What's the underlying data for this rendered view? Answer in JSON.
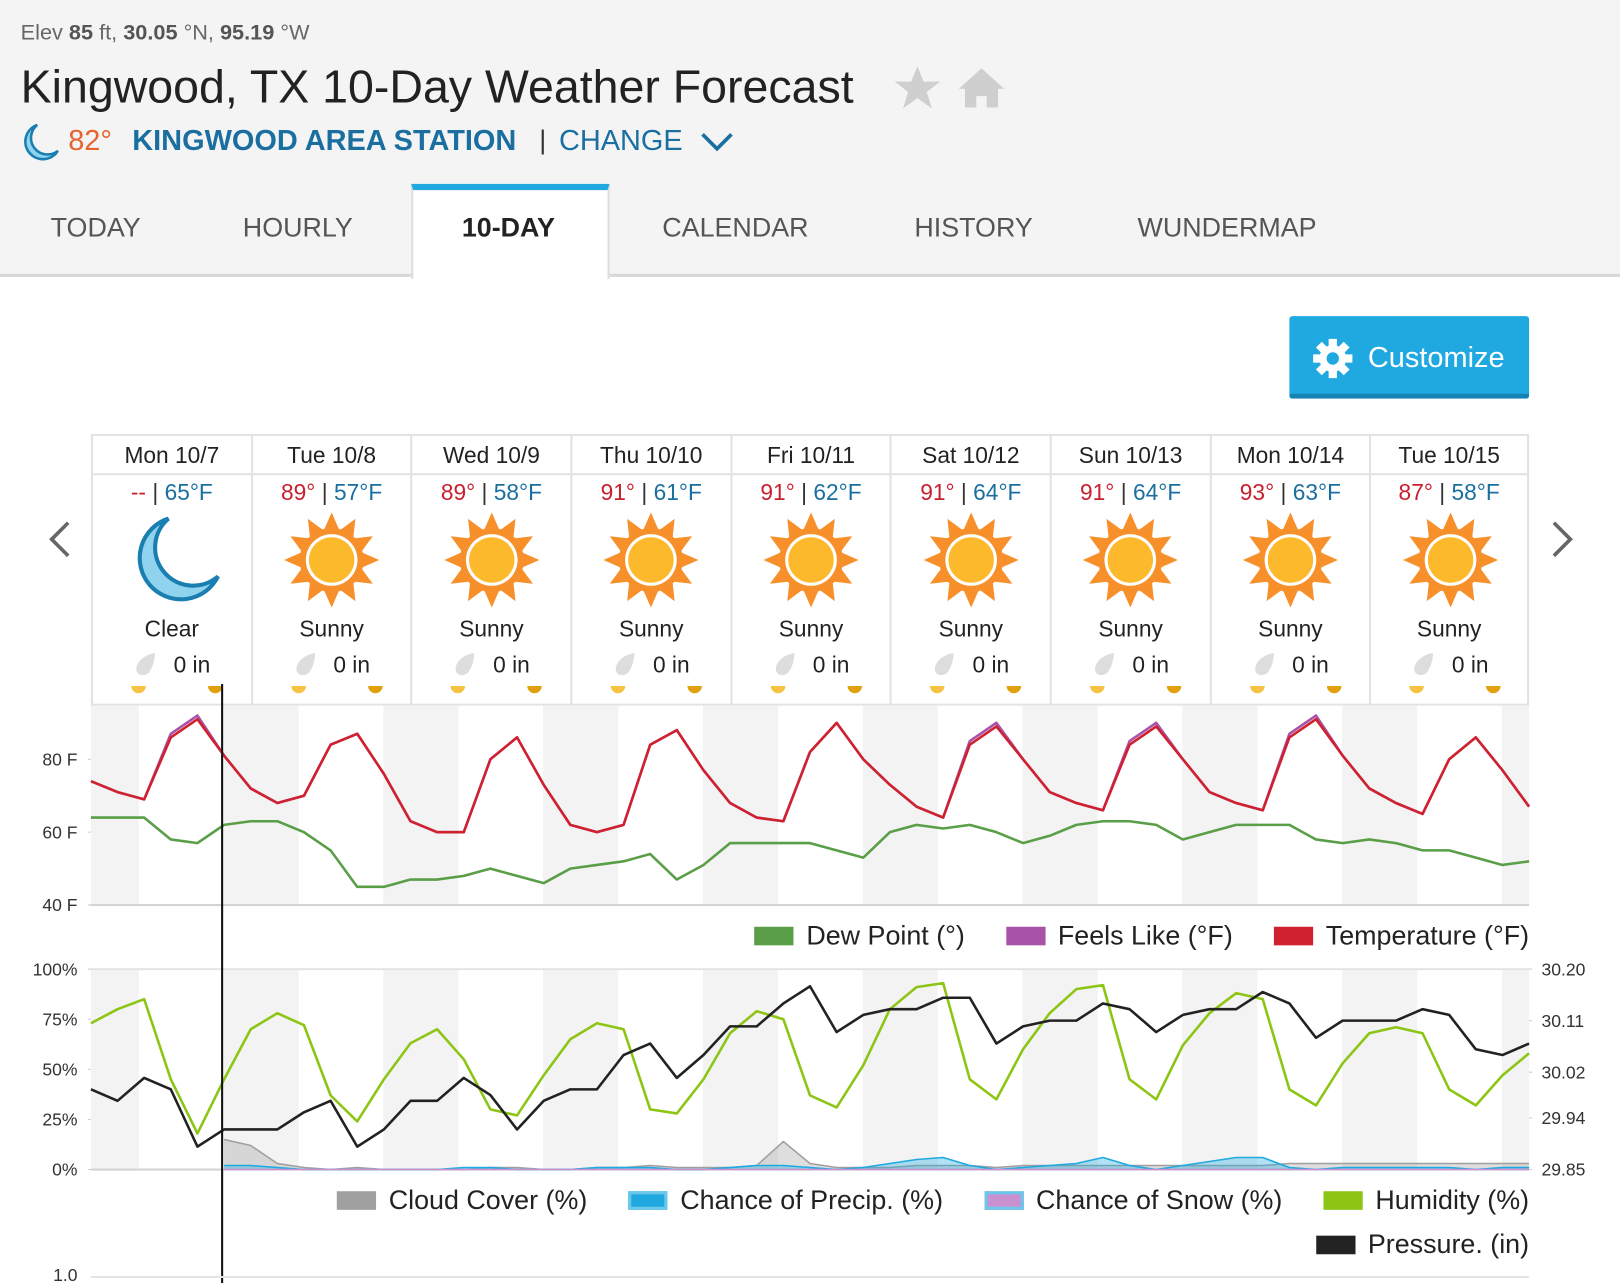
{
  "header": {
    "elev_label": "Elev",
    "elev": "85",
    "elev_unit": "ft,",
    "lat": "30.05",
    "lat_unit": "°N,",
    "lon": "95.19",
    "lon_unit": "°W",
    "title": "Kingwood, TX 10-Day Weather Forecast",
    "current_temp": "82°",
    "station": "KINGWOOD AREA STATION",
    "separator": "|",
    "change": "CHANGE"
  },
  "tabs": {
    "items": [
      "TODAY",
      "HOURLY",
      "10-DAY",
      "CALENDAR",
      "HISTORY",
      "WUNDERMAP"
    ],
    "active": 2
  },
  "customize": "Customize",
  "forecast": {
    "separator": "|",
    "days": [
      {
        "date": "Mon 10/7",
        "high": "--",
        "low": "65°F",
        "condition": "Clear",
        "icon": "moon",
        "precip": "0 in"
      },
      {
        "date": "Tue 10/8",
        "high": "89°",
        "low": "57°F",
        "condition": "Sunny",
        "icon": "sun",
        "precip": "0 in"
      },
      {
        "date": "Wed 10/9",
        "high": "89°",
        "low": "58°F",
        "condition": "Sunny",
        "icon": "sun",
        "precip": "0 in"
      },
      {
        "date": "Thu 10/10",
        "high": "91°",
        "low": "61°F",
        "condition": "Sunny",
        "icon": "sun",
        "precip": "0 in"
      },
      {
        "date": "Fri 10/11",
        "high": "91°",
        "low": "62°F",
        "condition": "Sunny",
        "icon": "sun",
        "precip": "0 in"
      },
      {
        "date": "Sat 10/12",
        "high": "91°",
        "low": "64°F",
        "condition": "Sunny",
        "icon": "sun",
        "precip": "0 in"
      },
      {
        "date": "Sun 10/13",
        "high": "91°",
        "low": "64°F",
        "condition": "Sunny",
        "icon": "sun",
        "precip": "0 in"
      },
      {
        "date": "Mon 10/14",
        "high": "93°",
        "low": "63°F",
        "condition": "Sunny",
        "icon": "sun",
        "precip": "0 in"
      },
      {
        "date": "Tue 10/15",
        "high": "87°",
        "low": "58°F",
        "condition": "Sunny",
        "icon": "sun",
        "precip": "0 in"
      }
    ]
  },
  "chart_data": [
    {
      "type": "line",
      "ylim": [
        40,
        95
      ],
      "yticks": [
        {
          "value": 40,
          "label": "40 F"
        },
        {
          "value": 60,
          "label": "60 F"
        },
        {
          "value": 80,
          "label": "80 F"
        }
      ],
      "grid": false,
      "series": [
        {
          "name": "Dew Point (°)",
          "color": "#5a9e48",
          "values": [
            64,
            64,
            64,
            58,
            57,
            62,
            63,
            63,
            60,
            55,
            45,
            45,
            47,
            47,
            48,
            50,
            48,
            46,
            50,
            51,
            52,
            54,
            47,
            51,
            57,
            57,
            57,
            57,
            55,
            53,
            60,
            62,
            61,
            62,
            60,
            57,
            59,
            62,
            63,
            63,
            62,
            58,
            60,
            62,
            62,
            62,
            58,
            57,
            58,
            57,
            55,
            55,
            53,
            51,
            52
          ]
        },
        {
          "name": "Feels Like (°F)",
          "color": "#a853a8",
          "values": [
            74,
            71,
            69,
            87,
            92,
            81,
            72,
            68,
            70,
            84,
            87,
            76,
            63,
            60,
            60,
            80,
            86,
            73,
            62,
            60,
            62,
            84,
            88,
            77,
            68,
            64,
            63,
            82,
            90,
            80,
            73,
            67,
            64,
            85,
            90,
            80,
            71,
            68,
            66,
            85,
            90,
            80,
            71,
            68,
            66,
            87,
            92,
            81,
            72,
            68,
            65,
            80,
            86,
            77,
            67
          ]
        },
        {
          "name": "Temperature (°F)",
          "color": "#d0212f",
          "values": [
            74,
            71,
            69,
            86,
            91,
            81,
            72,
            68,
            70,
            84,
            87,
            76,
            63,
            60,
            60,
            80,
            86,
            73,
            62,
            60,
            62,
            84,
            88,
            77,
            68,
            64,
            63,
            82,
            90,
            80,
            73,
            67,
            64,
            84,
            89,
            80,
            71,
            68,
            66,
            84,
            89,
            80,
            71,
            68,
            66,
            86,
            91,
            81,
            72,
            68,
            65,
            80,
            86,
            77,
            67
          ]
        }
      ]
    },
    {
      "type": "line",
      "ylim": [
        0,
        100
      ],
      "yticks": [
        {
          "value": 0,
          "label": "0%"
        },
        {
          "value": 25,
          "label": "25%"
        },
        {
          "value": 50,
          "label": "50%"
        },
        {
          "value": 75,
          "label": "75%"
        },
        {
          "value": 100,
          "label": "100%"
        }
      ],
      "y2lim": [
        29.85,
        30.2
      ],
      "y2ticks": [
        29.85,
        29.94,
        30.02,
        30.11,
        {
          "value": 30.2,
          "label": "30.20"
        }
      ],
      "grid": false,
      "series": [
        {
          "name": "Cloud Cover (%)",
          "color": "#a0a0a0",
          "area": true,
          "values": [
            null,
            null,
            null,
            null,
            null,
            15,
            12,
            3,
            1,
            0,
            1,
            0,
            0,
            0,
            0,
            1,
            1,
            0,
            0,
            1,
            1,
            2,
            1,
            1,
            1,
            2,
            14,
            3,
            1,
            1,
            1,
            2,
            2,
            2,
            1,
            2,
            2,
            2,
            2,
            2,
            2,
            2,
            2,
            2,
            2,
            3,
            3,
            3,
            3,
            3,
            3,
            3,
            3,
            3,
            3
          ]
        },
        {
          "name": "Chance of Precip. (%)",
          "color": "#1fa9e0",
          "area": true,
          "values": [
            null,
            null,
            null,
            null,
            null,
            2,
            2,
            1,
            0,
            0,
            0,
            0,
            0,
            0,
            1,
            1,
            0,
            0,
            0,
            1,
            1,
            1,
            0,
            0,
            1,
            2,
            2,
            1,
            0,
            1,
            3,
            5,
            6,
            2,
            0,
            1,
            2,
            3,
            6,
            2,
            0,
            2,
            4,
            6,
            6,
            1,
            0,
            1,
            1,
            1,
            1,
            1,
            0,
            1,
            1
          ]
        },
        {
          "name": "Chance of Snow (%)",
          "color": "#c991d0",
          "area": true,
          "values": [
            null,
            null,
            null,
            null,
            null,
            0,
            0,
            0,
            0,
            0,
            0,
            0,
            0,
            0,
            0,
            0,
            0,
            0,
            0,
            0,
            0,
            0,
            0,
            0,
            0,
            0,
            0,
            0,
            0,
            0,
            0,
            0,
            0,
            0,
            0,
            0,
            0,
            0,
            0,
            0,
            0,
            0,
            0,
            0,
            0,
            0,
            0,
            0,
            0,
            0,
            0,
            0,
            0,
            0,
            0
          ]
        },
        {
          "name": "Humidity (%)",
          "color": "#8cc514",
          "values": [
            73,
            80,
            85,
            45,
            18,
            45,
            70,
            78,
            72,
            37,
            24,
            45,
            63,
            70,
            55,
            30,
            27,
            47,
            65,
            73,
            70,
            30,
            28,
            45,
            68,
            79,
            75,
            37,
            31,
            52,
            80,
            91,
            93,
            45,
            35,
            60,
            78,
            90,
            92,
            45,
            35,
            62,
            78,
            88,
            85,
            40,
            32,
            53,
            68,
            71,
            68,
            40,
            32,
            47,
            58
          ]
        },
        {
          "name": "Pressure. (in)",
          "color": "#222222",
          "axis": "y2",
          "values": [
            29.99,
            29.97,
            30.01,
            29.99,
            29.89,
            29.92,
            29.92,
            29.92,
            29.95,
            29.97,
            29.89,
            29.92,
            29.97,
            29.97,
            30.01,
            29.98,
            29.92,
            29.97,
            29.99,
            29.99,
            30.05,
            30.07,
            30.01,
            30.05,
            30.1,
            30.1,
            30.14,
            30.17,
            30.09,
            30.12,
            30.13,
            30.13,
            30.15,
            30.15,
            30.07,
            30.1,
            30.11,
            30.11,
            30.14,
            30.13,
            30.09,
            30.12,
            30.13,
            30.13,
            30.16,
            30.14,
            30.08,
            30.11,
            30.11,
            30.11,
            30.13,
            30.12,
            30.06,
            30.05,
            30.07
          ]
        }
      ]
    }
  ],
  "next_chart_label": "1.0"
}
